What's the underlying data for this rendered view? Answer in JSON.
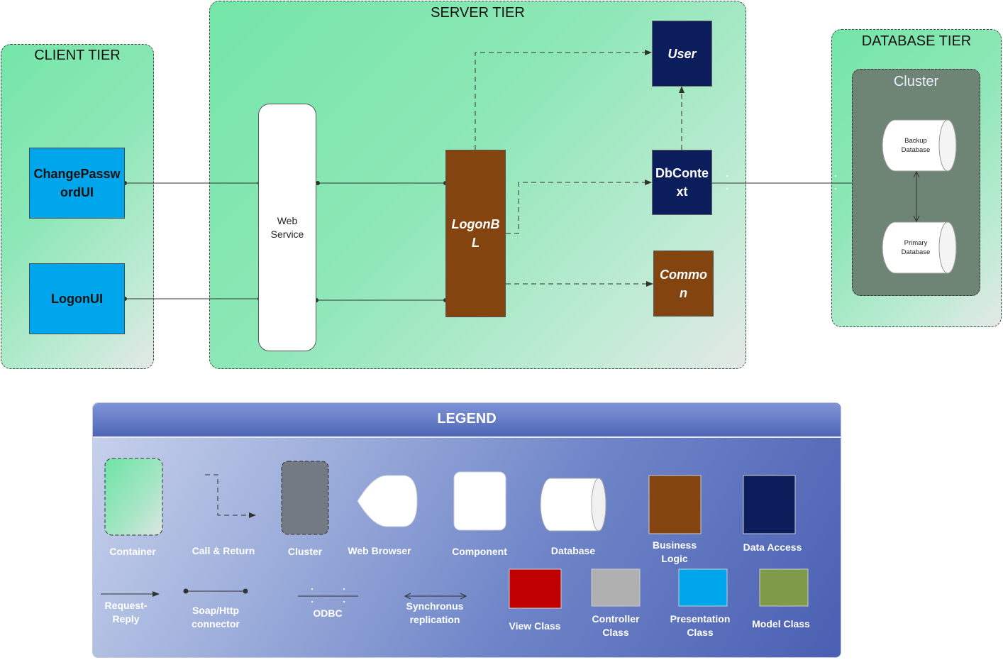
{
  "tiers": {
    "client": {
      "title": "CLIENT TIER"
    },
    "server": {
      "title": "SERVER TIER"
    },
    "database": {
      "title": "DATABASE TIER"
    }
  },
  "client": {
    "change_password_ui": "ChangePasswordUI",
    "logon_ui": "LogonUI"
  },
  "server": {
    "web_service": "Web Service",
    "logon_bl": "LogonBL",
    "user": "User",
    "db_context": "DbContext",
    "common": "Common"
  },
  "database": {
    "cluster_title": "Cluster",
    "backup_db": "Backup Database",
    "primary_db": "Primary Database"
  },
  "legend": {
    "title": "LEGEND",
    "items": {
      "container": "Container",
      "call_return": "Call & Return",
      "cluster": "Cluster",
      "web_browser": "Web Browser",
      "component": "Component",
      "database": "Database",
      "business_logic": "Business Logic",
      "data_access": "Data Access",
      "request_reply": "Request-Reply",
      "soap_http": "Soap/Http connector",
      "odbc": "ODBC",
      "sync_replication": "Synchronus replication",
      "view_class": "View Class",
      "controller_class": "Controller Class",
      "presentation_class": "Presentation Class",
      "model_class": "Model Class"
    }
  },
  "colors": {
    "presentation": "#00a6ec",
    "data_access": "#0b1e5b",
    "business_logic": "#84440f",
    "view_class": "#c00000",
    "controller_class": "#b0b0b0",
    "model_class": "#7f9a49",
    "cluster": "#6e8474",
    "container": "#74e6a8"
  }
}
